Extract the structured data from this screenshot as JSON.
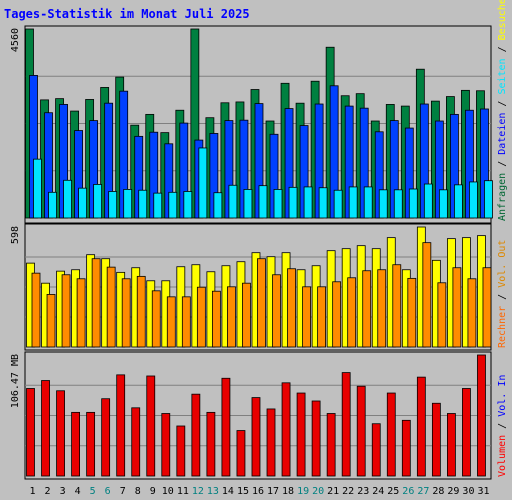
{
  "chart_data": {
    "type": "bar",
    "title": "Tages-Statistik im Monat Juli 2025",
    "categories": [
      "1",
      "2",
      "3",
      "4",
      "5",
      "6",
      "7",
      "8",
      "9",
      "10",
      "11",
      "12",
      "13",
      "14",
      "15",
      "16",
      "17",
      "18",
      "19",
      "20",
      "21",
      "22",
      "23",
      "24",
      "25",
      "26",
      "27",
      "28",
      "29",
      "30",
      "31"
    ],
    "weekend_categories": [
      "5",
      "6",
      "12",
      "13",
      "19",
      "20",
      "26",
      "27"
    ],
    "day_label_color": "#000000",
    "weekend_label_color": "#008080",
    "panels": [
      {
        "id": "top",
        "ymax": 4560,
        "ymax_label": "4560",
        "legend": [
          {
            "text": "Anfragen",
            "color": "#006633"
          },
          {
            "text": " / ",
            "color": "#000000"
          },
          {
            "text": "Dateien",
            "color": "#0000ff"
          },
          {
            "text": " / ",
            "color": "#000000"
          },
          {
            "text": "Seiten",
            "color": "#00e5ff"
          },
          {
            "text": " / ",
            "color": "#000000"
          },
          {
            "text": "Besuche",
            "color": "#ffff00"
          }
        ],
        "series": [
          {
            "name": "Anfragen",
            "color": "#008040",
            "values": [
              4560,
              2850,
              2880,
              2580,
              2860,
              3150,
              3400,
              2240,
              2500,
              2060,
              2600,
              4560,
              2420,
              2780,
              2800,
              3100,
              2340,
              3250,
              2770,
              3300,
              4120,
              2950,
              3000,
              2340,
              2740,
              2700,
              3590,
              2820,
              2930,
              3080,
              3070
            ]
          },
          {
            "name": "Dateien",
            "color": "#0040ff",
            "values": [
              3440,
              2540,
              2740,
              2110,
              2350,
              2770,
              3060,
              1970,
              2070,
              1790,
              2290,
              1880,
              2040,
              2350,
              2360,
              2760,
              2020,
              2640,
              2230,
              2750,
              3190,
              2700,
              2650,
              2080,
              2350,
              2170,
              2750,
              2340,
              2500,
              2600,
              2630
            ]
          },
          {
            "name": "Seiten",
            "color": "#00e5ff",
            "values": [
              1420,
              620,
              910,
              720,
              810,
              640,
              690,
              670,
              600,
              620,
              640,
              1690,
              610,
              790,
              690,
              780,
              690,
              740,
              750,
              730,
              670,
              750,
              750,
              680,
              680,
              700,
              820,
              680,
              800,
              870,
              900
            ]
          }
        ]
      },
      {
        "id": "middle",
        "ymax": 598,
        "ymax_label": "598",
        "legend": [
          {
            "text": "Rechner",
            "color": "#ff6600"
          },
          {
            "text": " / ",
            "color": "#000000"
          },
          {
            "text": "Vol. Out",
            "color": "#dd8800"
          }
        ],
        "series": [
          {
            "name": "Besuche",
            "color": "#ffff00",
            "values": [
              418,
              318,
              378,
              385,
              460,
              440,
              372,
              395,
              330,
              330,
              400,
              410,
              375,
              405,
              425,
              470,
              450,
              470,
              385,
              405,
              480,
              490,
              505,
              490,
              545,
              385,
              598,
              432,
              540,
              545,
              555
            ]
          },
          {
            "name": "Rechner",
            "color": "#ff8c00",
            "values": [
              368,
              262,
              360,
              340,
              440,
              398,
              340,
              352,
              280,
              250,
              250,
              298,
              278,
              300,
              318,
              440,
              360,
              390,
              300,
              300,
              325,
              345,
              380,
              385,
              410,
              342,
              520,
              320,
              395,
              340,
              395
            ]
          }
        ]
      },
      {
        "id": "bottom",
        "ymax": 106.47,
        "ymax_label": "106.47 MB",
        "legend": [
          {
            "text": "Volumen",
            "color": "#ff0000"
          },
          {
            "text": " / ",
            "color": "#000000"
          },
          {
            "text": "Vol. In",
            "color": "#0000ff"
          }
        ],
        "series": [
          {
            "name": "Volumen",
            "color": "#e80000",
            "values": [
              77,
              84,
              75,
              56,
              56,
              68,
              89,
              60,
              88,
              55,
              44,
              72,
              56,
              86,
              40,
              69,
              59,
              82,
              73,
              66,
              55,
              91,
              79,
              46,
              73,
              49,
              87,
              64,
              55,
              77,
              106.47
            ]
          }
        ]
      }
    ]
  }
}
